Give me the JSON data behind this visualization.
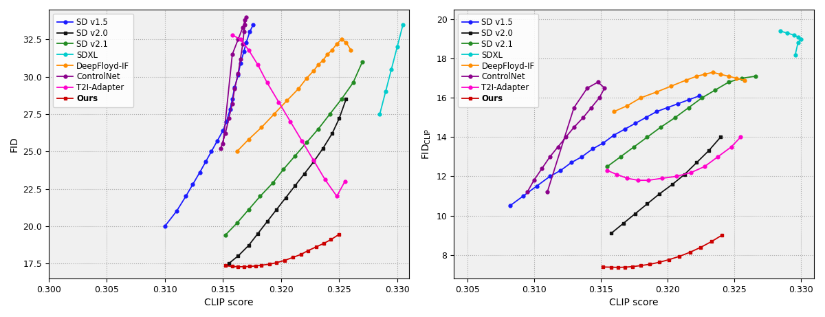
{
  "plot1_xlim": [
    0.3,
    0.331
  ],
  "plot1_ylim": [
    16.5,
    34.5
  ],
  "plot1_ylabel": "FID",
  "plot1_xlabel": "CLIP score",
  "plot1_xticks": [
    0.3,
    0.305,
    0.31,
    0.315,
    0.32,
    0.325,
    0.33
  ],
  "plot1_yticks": [
    17.5,
    20.0,
    22.5,
    25.0,
    27.5,
    30.0,
    32.5
  ],
  "plot2_xlim": [
    0.304,
    0.331
  ],
  "plot2_ylim": [
    6.8,
    20.5
  ],
  "plot2_ylabel": "FID$_{CLIP}$",
  "plot2_xlabel": "CLIP score",
  "plot2_xticks": [
    0.305,
    0.31,
    0.315,
    0.32,
    0.325,
    0.33
  ],
  "plot2_yticks": [
    8,
    10,
    12,
    14,
    16,
    18,
    20
  ],
  "sd15_fid_clip": [
    0.31,
    0.311,
    0.3118,
    0.3124,
    0.313,
    0.3135,
    0.314,
    0.3145,
    0.315,
    0.3153,
    0.3156,
    0.3158,
    0.316,
    0.3163,
    0.3165,
    0.3168,
    0.317,
    0.3173,
    0.3176
  ],
  "sd15_fid": [
    20.0,
    21.0,
    22.0,
    22.8,
    23.6,
    24.3,
    25.0,
    25.7,
    26.4,
    27.0,
    27.8,
    28.5,
    29.3,
    30.1,
    30.9,
    31.7,
    32.3,
    33.0,
    33.5
  ],
  "sd20_fid_clip": [
    0.3155,
    0.3163,
    0.3172,
    0.318,
    0.3188,
    0.3196,
    0.3204,
    0.3212,
    0.322,
    0.3228,
    0.3236,
    0.3244,
    0.325,
    0.3256
  ],
  "sd20_fid": [
    17.5,
    18.0,
    18.7,
    19.5,
    20.3,
    21.1,
    21.9,
    22.7,
    23.5,
    24.3,
    25.2,
    26.2,
    27.2,
    28.5
  ],
  "sd21_fid_clip": [
    0.3152,
    0.3162,
    0.3172,
    0.3182,
    0.3193,
    0.3202,
    0.3212,
    0.3222,
    0.3232,
    0.3242,
    0.3252,
    0.3262,
    0.327
  ],
  "sd21_fid": [
    19.4,
    20.2,
    21.1,
    22.0,
    22.9,
    23.8,
    24.7,
    25.6,
    26.5,
    27.5,
    28.5,
    29.6,
    31.0
  ],
  "sdxl_fid_clip": [
    0.3285,
    0.329,
    0.3295,
    0.33,
    0.3305
  ],
  "sdxl_fid": [
    27.5,
    29.0,
    30.5,
    32.0,
    33.5
  ],
  "deepfloyd_fid_clip": [
    0.3162,
    0.3172,
    0.3183,
    0.3194,
    0.3205,
    0.3215,
    0.3222,
    0.3228,
    0.3232,
    0.3236,
    0.324,
    0.3244,
    0.3248,
    0.3252,
    0.3256,
    0.326
  ],
  "deepfloyd_fid": [
    25.0,
    25.8,
    26.6,
    27.5,
    28.4,
    29.2,
    29.9,
    30.4,
    30.8,
    31.1,
    31.5,
    31.8,
    32.2,
    32.5,
    32.3,
    31.8
  ],
  "controlnet_fid_clip": [
    0.3148,
    0.3152,
    0.3155,
    0.3158,
    0.316,
    0.3163,
    0.3165,
    0.3167,
    0.3168,
    0.3169,
    0.317,
    0.3169,
    0.3167,
    0.3163,
    0.3158,
    0.315
  ],
  "controlnet_fid": [
    25.2,
    26.2,
    27.2,
    28.2,
    29.2,
    30.2,
    31.2,
    32.2,
    33.0,
    33.5,
    34.0,
    33.8,
    33.3,
    32.5,
    31.5,
    25.5
  ],
  "t2i_fid_clip": [
    0.3158,
    0.3165,
    0.3172,
    0.318,
    0.3188,
    0.3198,
    0.3208,
    0.3218,
    0.3228,
    0.3238,
    0.3248,
    0.3255
  ],
  "t2i_fid": [
    32.8,
    32.5,
    31.8,
    30.8,
    29.6,
    28.3,
    27.0,
    25.7,
    24.4,
    23.1,
    22.0,
    23.0
  ],
  "ours_fid_clip": [
    0.3152,
    0.3158,
    0.3163,
    0.3168,
    0.3173,
    0.3178,
    0.3183,
    0.319,
    0.3196,
    0.3203,
    0.321,
    0.3217,
    0.3223,
    0.323,
    0.3237,
    0.3243,
    0.325
  ],
  "ours_fid": [
    17.35,
    17.3,
    17.28,
    17.28,
    17.3,
    17.33,
    17.38,
    17.45,
    17.55,
    17.7,
    17.9,
    18.1,
    18.35,
    18.6,
    18.85,
    19.1,
    19.45
  ],
  "sd15_fidc_clip": [
    0.3082,
    0.3092,
    0.3102,
    0.3112,
    0.312,
    0.3128,
    0.3136,
    0.3144,
    0.3152,
    0.316,
    0.3168,
    0.3176,
    0.3184,
    0.3192,
    0.32,
    0.3208,
    0.3216,
    0.3224
  ],
  "sd15_fidc": [
    10.5,
    11.0,
    11.5,
    12.0,
    12.3,
    12.7,
    13.0,
    13.4,
    13.7,
    14.1,
    14.4,
    14.7,
    15.0,
    15.3,
    15.5,
    15.7,
    15.9,
    16.1
  ],
  "sd20_fidc_clip": [
    0.3158,
    0.3167,
    0.3176,
    0.3185,
    0.3194,
    0.3204,
    0.3213,
    0.3222,
    0.3231,
    0.324
  ],
  "sd20_fidc": [
    9.1,
    9.6,
    10.1,
    10.6,
    11.1,
    11.6,
    12.1,
    12.7,
    13.3,
    14.0
  ],
  "sd21_fidc_clip": [
    0.3155,
    0.3165,
    0.3175,
    0.3185,
    0.3195,
    0.3206,
    0.3216,
    0.3226,
    0.3236,
    0.3246,
    0.3256,
    0.3266
  ],
  "sd21_fidc": [
    12.5,
    13.0,
    13.5,
    14.0,
    14.5,
    15.0,
    15.5,
    16.0,
    16.4,
    16.8,
    17.0,
    17.1
  ],
  "sdxl_fidc_clip": [
    0.3285,
    0.329,
    0.3295,
    0.3298,
    0.33,
    0.3298,
    0.3296
  ],
  "sdxl_fidc": [
    19.4,
    19.3,
    19.2,
    19.1,
    19.0,
    18.8,
    18.2
  ],
  "deepfloyd_fidc_clip": [
    0.316,
    0.317,
    0.318,
    0.3192,
    0.3203,
    0.3214,
    0.3222,
    0.3228,
    0.3234,
    0.324,
    0.3246,
    0.3252,
    0.3258
  ],
  "deepfloyd_fidc": [
    15.3,
    15.6,
    16.0,
    16.3,
    16.6,
    16.9,
    17.1,
    17.2,
    17.3,
    17.2,
    17.1,
    17.0,
    16.9
  ],
  "controlnet_fidc_clip": [
    0.3095,
    0.31,
    0.3106,
    0.3112,
    0.3118,
    0.3124,
    0.313,
    0.3137,
    0.3143,
    0.3149,
    0.3153,
    0.3148,
    0.314,
    0.313,
    0.311
  ],
  "controlnet_fidc": [
    11.2,
    11.8,
    12.4,
    13.0,
    13.5,
    14.0,
    14.5,
    15.0,
    15.5,
    16.0,
    16.5,
    16.8,
    16.5,
    15.5,
    11.2
  ],
  "t2i_fidc_clip": [
    0.3155,
    0.3162,
    0.317,
    0.3178,
    0.3186,
    0.3196,
    0.3207,
    0.3218,
    0.3228,
    0.3238,
    0.3248,
    0.3255
  ],
  "t2i_fidc": [
    12.3,
    12.1,
    11.9,
    11.8,
    11.8,
    11.9,
    12.0,
    12.2,
    12.5,
    13.0,
    13.5,
    14.0
  ],
  "ours_fidc_clip": [
    0.3152,
    0.3158,
    0.3163,
    0.3168,
    0.3174,
    0.318,
    0.3187,
    0.3194,
    0.3201,
    0.3209,
    0.3217,
    0.3225,
    0.3233,
    0.3241
  ],
  "ours_fidc": [
    7.38,
    7.37,
    7.36,
    7.37,
    7.4,
    7.45,
    7.52,
    7.62,
    7.75,
    7.92,
    8.13,
    8.38,
    8.67,
    9.0
  ],
  "grid_color": "#aaaaaa",
  "grid_linestyle": ":",
  "grid_linewidth": 0.8,
  "markersize": 3.5,
  "linewidth": 1.3,
  "bg_color": "#f0f0f0"
}
